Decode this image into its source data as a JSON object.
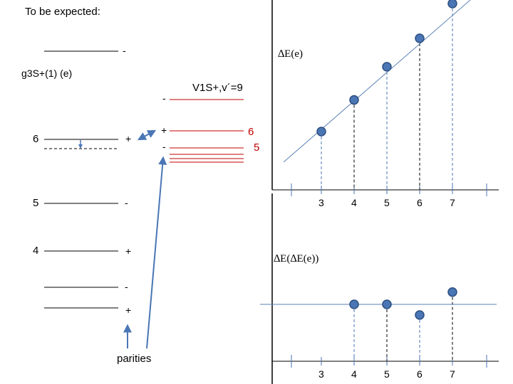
{
  "slide": {
    "title": "To be expected:"
  },
  "left_diagram": {
    "state_label": "g3S+(1) (e)",
    "top_level_parity": "-",
    "levels": [
      {
        "v": "6",
        "parity": "+"
      },
      {
        "v": "5",
        "parity": "-"
      },
      {
        "v": "4",
        "parity": "+"
      }
    ],
    "lower_parities": [
      "-",
      "+"
    ],
    "parities_label": "parities"
  },
  "right_diagram": {
    "state_label": "V1S+,v´=9",
    "parities": [
      "-",
      "+",
      "-"
    ],
    "level_labels": [
      "6",
      "5"
    ]
  },
  "chart_data": [
    {
      "type": "scatter",
      "title": "∆E(e)",
      "x": [
        3,
        4,
        5,
        6,
        7
      ],
      "tick_labels": [
        "3",
        "4",
        "5",
        "6",
        "7"
      ],
      "y": [
        1.0,
        2.0,
        3.05,
        3.95,
        5.05
      ],
      "ylim": [
        0,
        5
      ],
      "fit_line": true
    },
    {
      "type": "scatter",
      "title": "∆E(∆E(e))",
      "x": [
        4,
        5,
        6,
        7
      ],
      "tick_labels": [
        "3",
        "4",
        "5",
        "6",
        "7"
      ],
      "y": [
        0.0,
        0.0,
        -0.2,
        0.23
      ],
      "ylim": [
        -1,
        1
      ],
      "reference_line": 0
    }
  ],
  "colors": {
    "level_line": "#000000",
    "red_level": "#c00000",
    "point_fill": "#4a76b5",
    "point_stroke": "#2e4f80",
    "fit_line": "#5b82b5",
    "arrow": "#4a76b5"
  }
}
